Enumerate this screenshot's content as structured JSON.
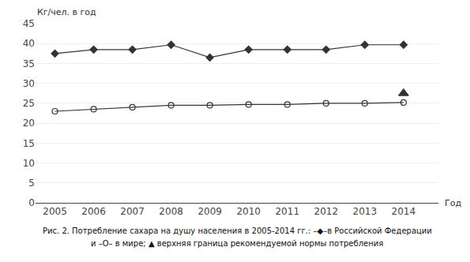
{
  "chart_data": {
    "type": "line",
    "x": [
      2005,
      2006,
      2007,
      2008,
      2009,
      2010,
      2011,
      2012,
      2013,
      2014
    ],
    "series": [
      {
        "type": "line",
        "color": "#333333",
        "marker": "diamond",
        "values": [
          37.5,
          38.5,
          38.5,
          39.7,
          36.5,
          38.5,
          38.5,
          38.5,
          39.7,
          39.7
        ]
      },
      {
        "type": "line",
        "color": "#333333",
        "marker": "circle-open",
        "values": [
          23.0,
          23.5,
          24.0,
          24.5,
          24.5,
          24.7,
          24.7,
          25.0,
          25.0,
          25.2
        ]
      },
      {
        "type": "scatter",
        "color": "#333333",
        "marker": "triangle-up",
        "values": [
          null,
          null,
          null,
          null,
          null,
          null,
          null,
          null,
          null,
          27.5
        ]
      }
    ],
    "xlim": [
      2004.5,
      2014.9
    ],
    "xticks": [
      2005,
      2006,
      2007,
      2008,
      2009,
      2010,
      2011,
      2012,
      2013,
      2014
    ],
    "ylim": [
      0,
      45
    ],
    "yticks": [
      0,
      5,
      10,
      15,
      20,
      25,
      30,
      35,
      40,
      45
    ],
    "ylabel": "Кг/чел. в год",
    "xlabel": "Год",
    "annotations": [
      "Рис. 2. Потребление сахара на душу населения в 2005-2014 гг.: –◆–в Российской Федерации",
      "и –О– в мире; ▲ верхняя граница рекомендуемой нормы потребления"
    ],
    "grid": true
  }
}
